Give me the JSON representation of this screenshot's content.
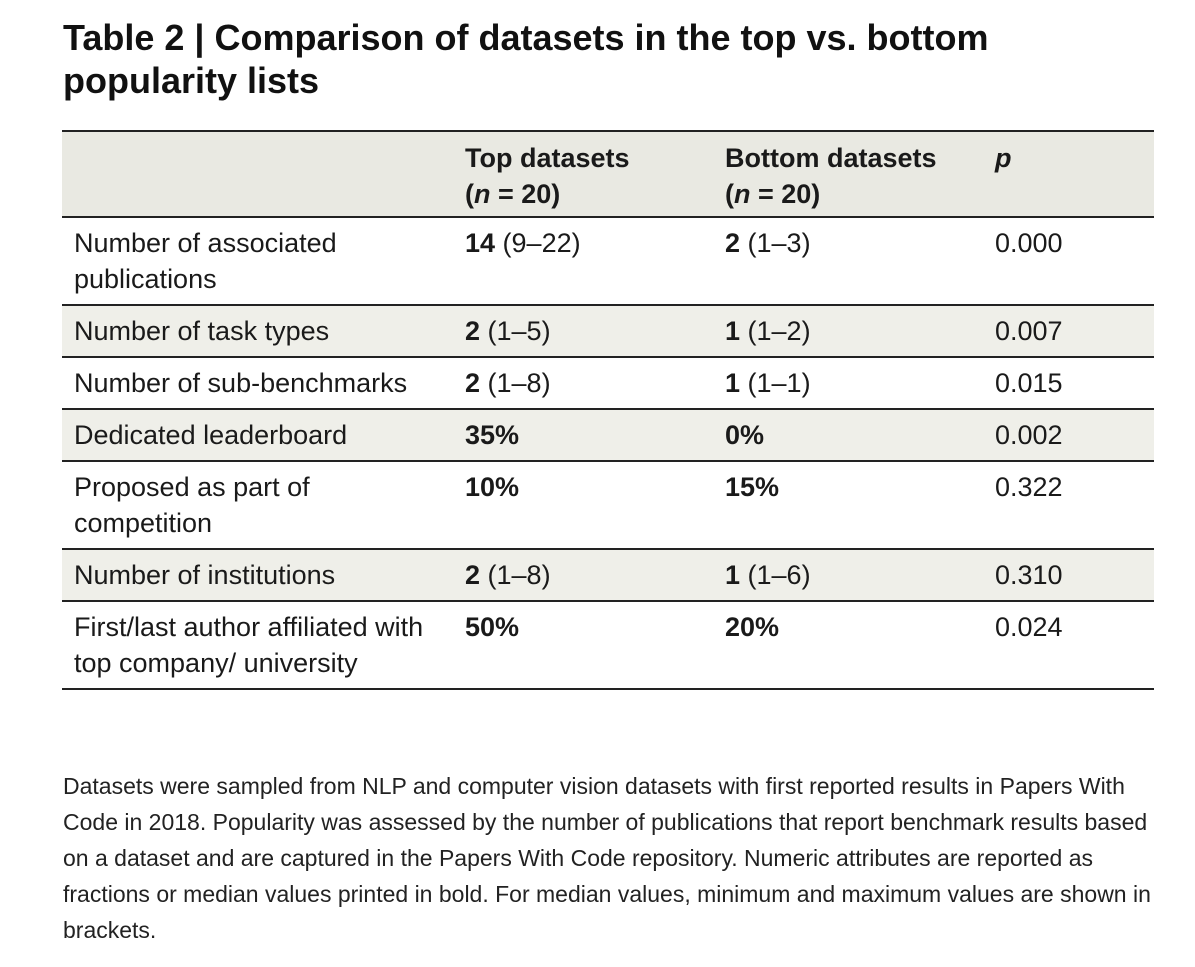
{
  "title": "Table 2 | Comparison of datasets in the top vs. bottom popularity lists",
  "header": {
    "col_top_line1": "Top datasets",
    "col_top_line2_n": "n",
    "col_top_line2_rest": " = 20)",
    "col_top_line2_open": "(",
    "col_bottom_line1": "Bottom datasets",
    "col_bottom_line2_open": "(",
    "col_bottom_line2_n": "n",
    "col_bottom_line2_rest": " = 20)",
    "col_p": "p"
  },
  "rows": [
    {
      "label": "Number of associated publications",
      "top_bold": "14",
      "top_rest": " (9–22)",
      "bottom_bold": "2",
      "bottom_rest": " (1–3)",
      "p": "0.000"
    },
    {
      "label": "Number of task types",
      "top_bold": "2",
      "top_rest": " (1–5)",
      "bottom_bold": "1",
      "bottom_rest": " (1–2)",
      "p": "0.007"
    },
    {
      "label": "Number of sub-benchmarks",
      "top_bold": "2",
      "top_rest": " (1–8)",
      "bottom_bold": "1",
      "bottom_rest": " (1–1)",
      "p": "0.015"
    },
    {
      "label": "Dedicated leaderboard",
      "top_bold": "35%",
      "top_rest": "",
      "bottom_bold": "0%",
      "bottom_rest": "",
      "p": "0.002"
    },
    {
      "label": "Proposed as part of competition",
      "top_bold": "10%",
      "top_rest": "",
      "bottom_bold": "15%",
      "bottom_rest": "",
      "p": "0.322"
    },
    {
      "label": "Number of institutions",
      "top_bold": "2",
      "top_rest": " (1–8)",
      "bottom_bold": "1",
      "bottom_rest": " (1–6)",
      "p": "0.310"
    },
    {
      "label": "First/last author affiliated with top company/ university",
      "top_bold": "50%",
      "top_rest": "",
      "bottom_bold": "20%",
      "bottom_rest": "",
      "p": "0.024"
    }
  ],
  "caption": "Datasets were sampled from NLP and computer vision datasets with first reported results in Papers With Code in 2018. Popularity was assessed by the number of publications that report benchmark results based on a dataset and are captured in the Papers With Code repository. Numeric attributes are reported as fractions or median values printed in bold. For median values, minimum and maximum values are shown in brackets."
}
